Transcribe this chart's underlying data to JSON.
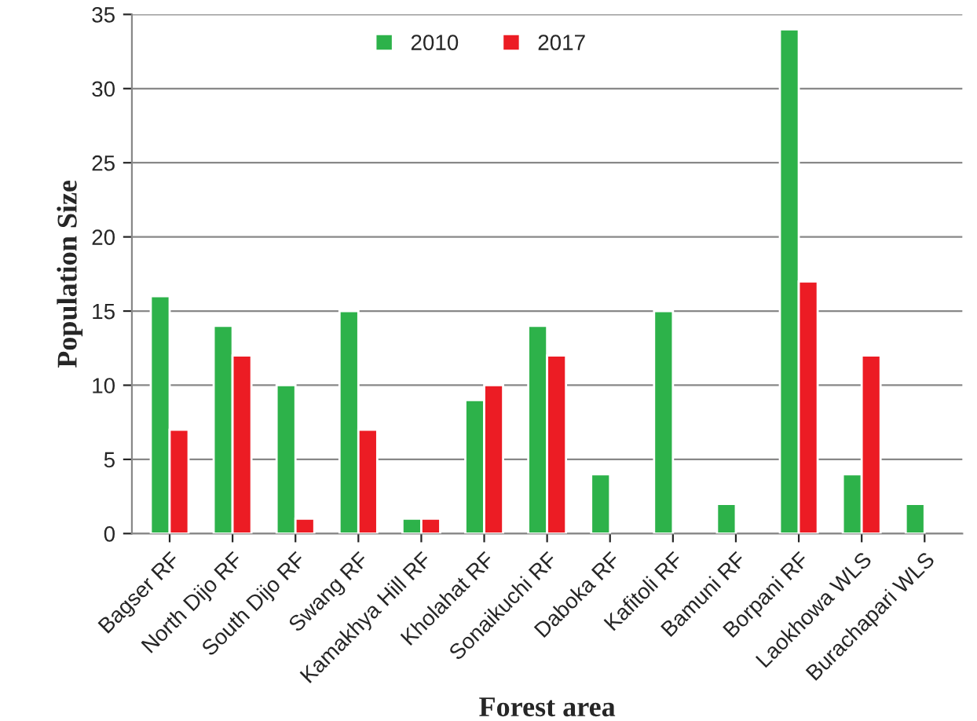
{
  "chart_data": {
    "type": "bar",
    "xlabel": "Forest area",
    "ylabel": "Population Size",
    "categories": [
      "Bagser RF",
      "North Dijo RF",
      "South Dijo RF",
      "Swang RF",
      "Kamakhya Hill RF",
      "Kholahat RF",
      "Sonaikuchi RF",
      "Daboka RF",
      "Kafitoli RF",
      "Bamuni RF",
      "Borpani RF",
      "Laokhowa WLS",
      "Burachapari WLS"
    ],
    "series": [
      {
        "name": "2010",
        "color": "#2db24a",
        "values": [
          16,
          14,
          10,
          15,
          1,
          9,
          14,
          4,
          15,
          2,
          34,
          4,
          2
        ]
      },
      {
        "name": "2017",
        "color": "#ec1c24",
        "values": [
          7,
          12,
          1,
          7,
          1,
          10,
          12,
          null,
          null,
          null,
          17,
          12,
          null
        ]
      }
    ],
    "ylim": [
      0,
      35
    ],
    "yticks": [
      0,
      5,
      10,
      15,
      20,
      25,
      30,
      35
    ],
    "grid": "y",
    "legend": "top"
  }
}
